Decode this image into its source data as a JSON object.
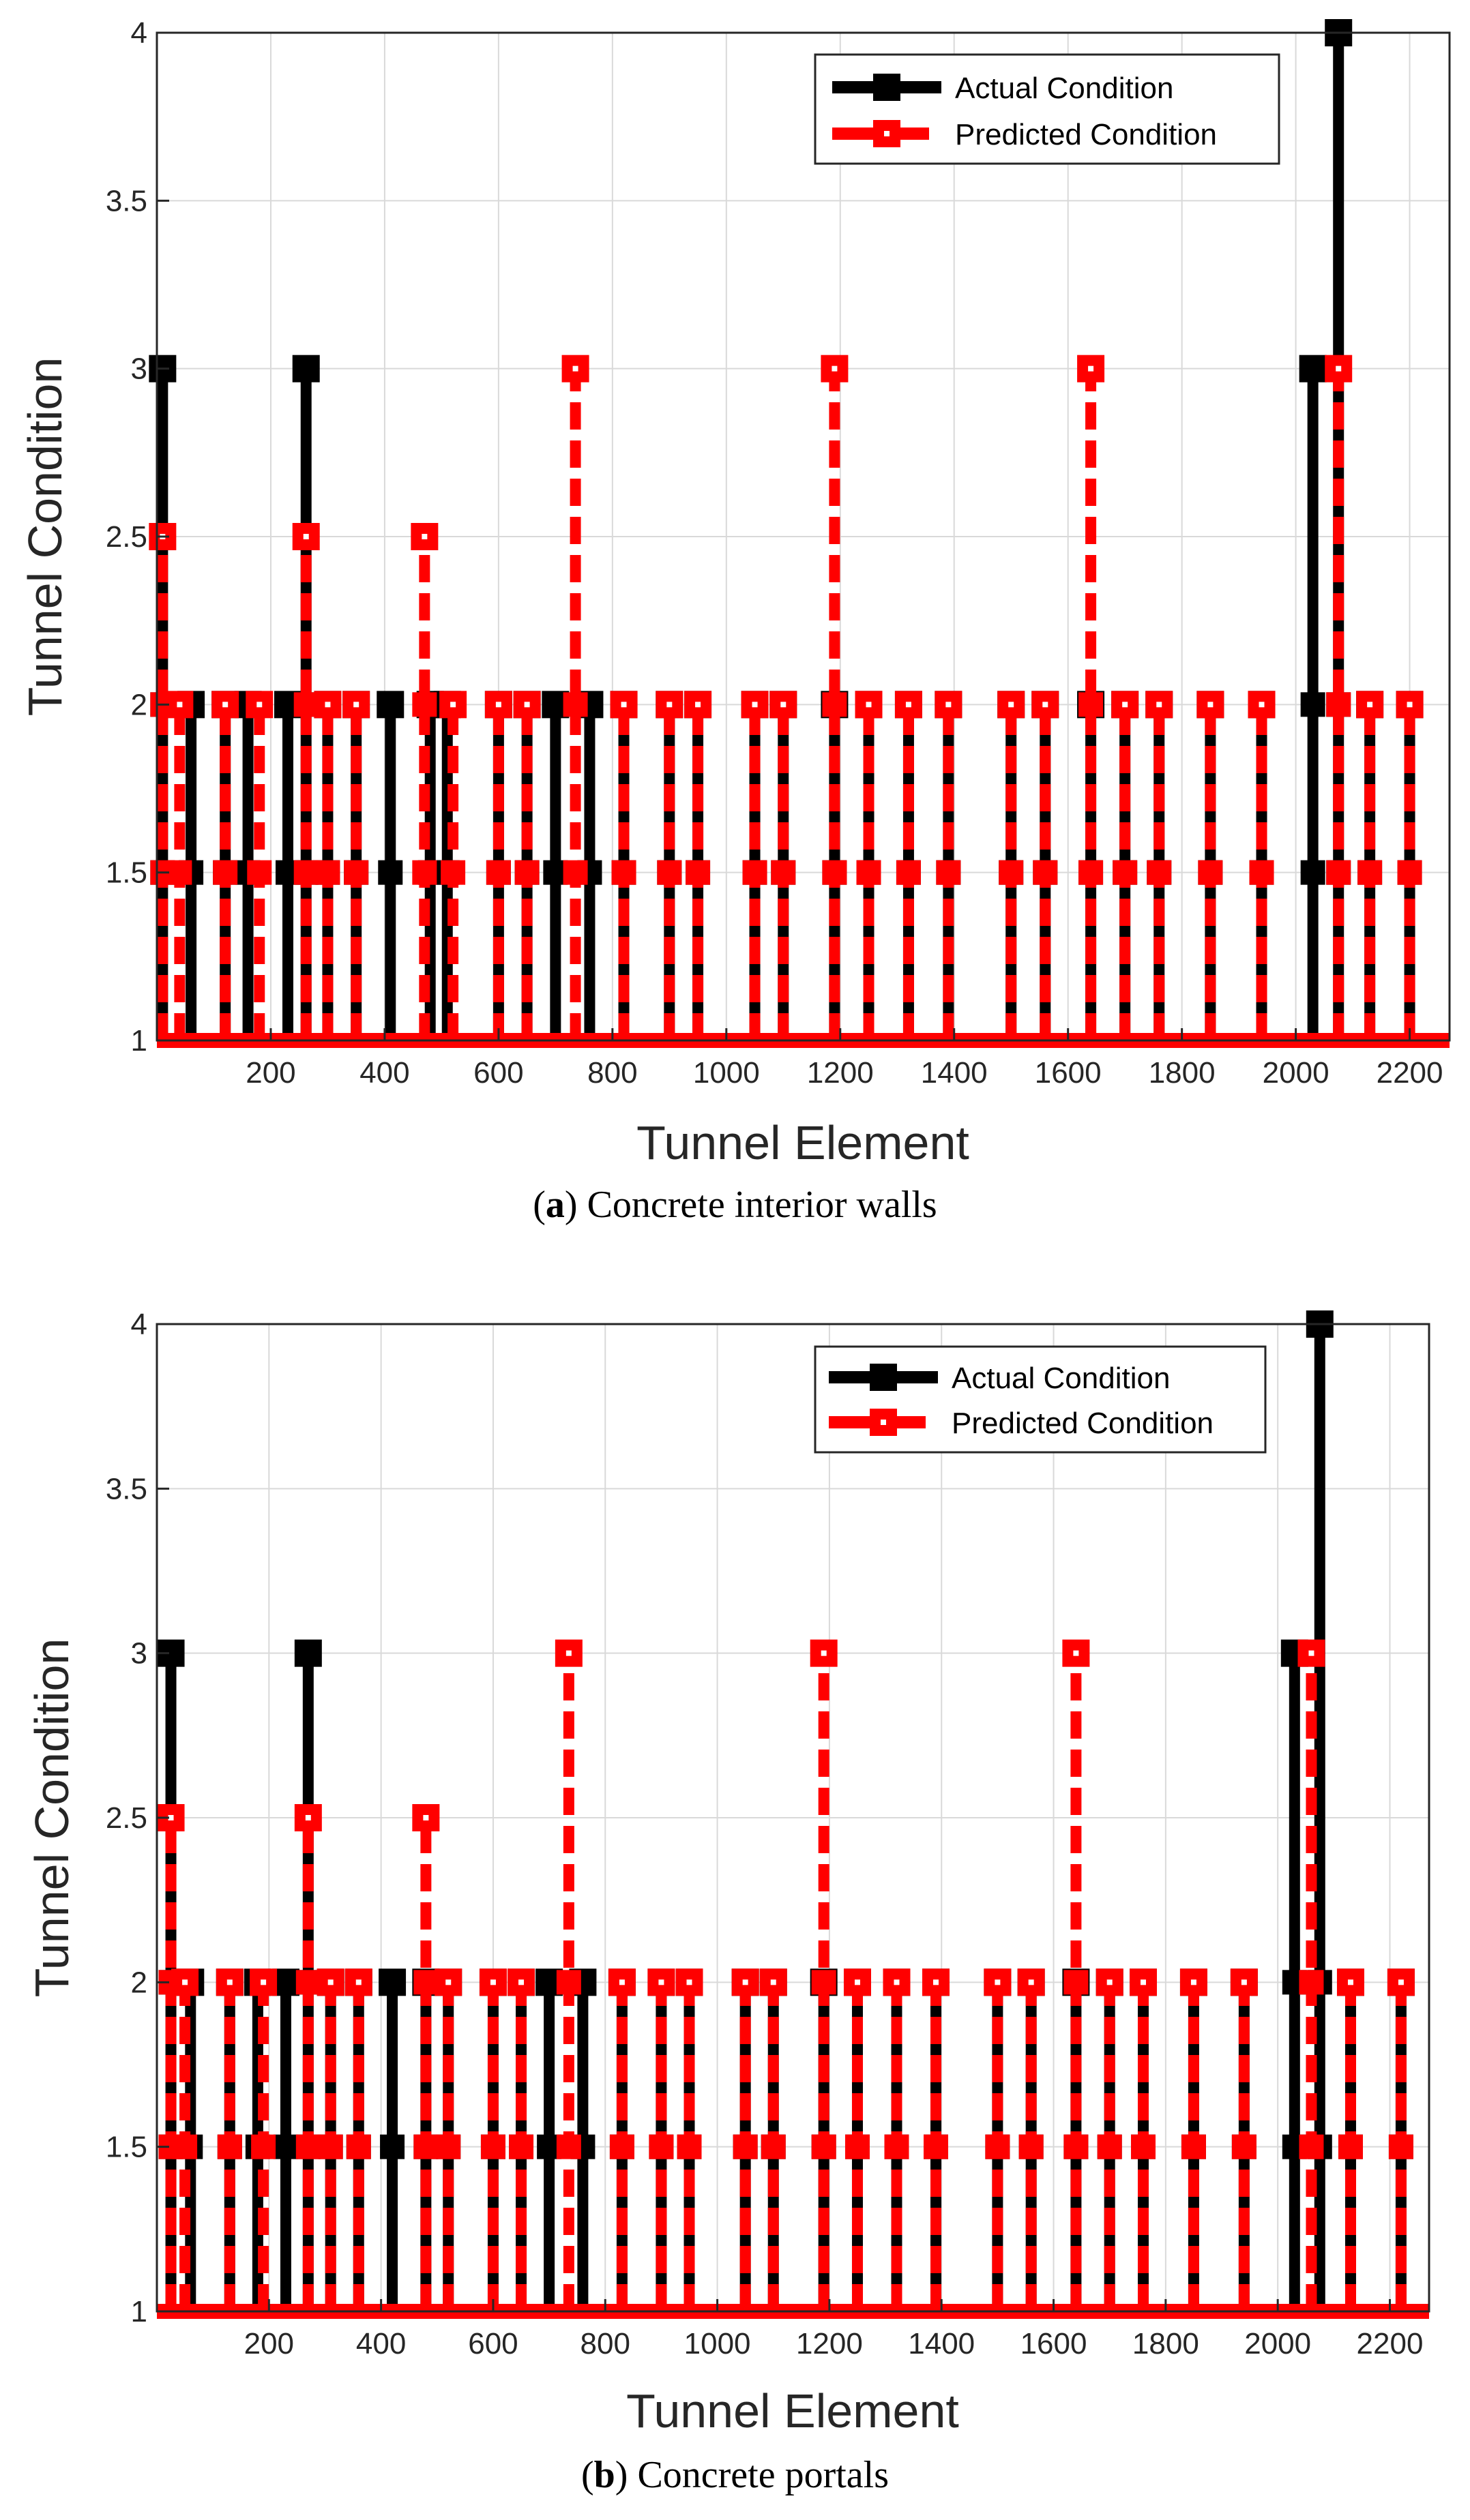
{
  "colors": {
    "actual": "#000000",
    "predicted": "#ff0000",
    "grid": "#d9d9d9",
    "axis": "#262626"
  },
  "chart_data": [
    {
      "type": "line",
      "panel": "a",
      "caption_letter": "a",
      "caption_text": "Concrete interior walls",
      "xlabel": "Tunnel Element",
      "ylabel": "Tunnel Condition",
      "xlim": [
        0,
        2270
      ],
      "ylim": [
        1,
        4
      ],
      "xticks": [
        200,
        400,
        600,
        800,
        1000,
        1200,
        1400,
        1600,
        1800,
        2000,
        2200
      ],
      "yticks": [
        1,
        1.5,
        2,
        2.5,
        3,
        3.5,
        4
      ],
      "grid": true,
      "legend_position": "top-right",
      "series": [
        {
          "name": "Actual Condition",
          "style": "solid",
          "peaks": [
            [
              10,
              3
            ],
            [
              60,
              2
            ],
            [
              120,
              2
            ],
            [
              160,
              2
            ],
            [
              230,
              2
            ],
            [
              262,
              3
            ],
            [
              300,
              2
            ],
            [
              350,
              2
            ],
            [
              410,
              2
            ],
            [
              480,
              2
            ],
            [
              510,
              2
            ],
            [
              600,
              2
            ],
            [
              650,
              2
            ],
            [
              700,
              2
            ],
            [
              760,
              2
            ],
            [
              820,
              2
            ],
            [
              900,
              2
            ],
            [
              950,
              2
            ],
            [
              1050,
              2
            ],
            [
              1100,
              2
            ],
            [
              1190,
              2
            ],
            [
              1250,
              2
            ],
            [
              1320,
              2
            ],
            [
              1390,
              2
            ],
            [
              1500,
              2
            ],
            [
              1560,
              2
            ],
            [
              1640,
              2
            ],
            [
              1700,
              2
            ],
            [
              1760,
              2
            ],
            [
              1850,
              2
            ],
            [
              1940,
              2
            ],
            [
              2030,
              3
            ],
            [
              2075,
              4
            ],
            [
              2130,
              2
            ],
            [
              2200,
              2
            ]
          ]
        },
        {
          "name": "Predicted Condition",
          "style": "dashed",
          "peaks": [
            [
              10,
              2.5
            ],
            [
              40,
              2
            ],
            [
              120,
              2
            ],
            [
              180,
              2
            ],
            [
              262,
              2.5
            ],
            [
              300,
              2
            ],
            [
              350,
              2
            ],
            [
              470,
              2.5
            ],
            [
              520,
              2
            ],
            [
              600,
              2
            ],
            [
              650,
              2
            ],
            [
              735,
              3
            ],
            [
              820,
              2
            ],
            [
              900,
              2
            ],
            [
              950,
              2
            ],
            [
              1050,
              2
            ],
            [
              1100,
              2
            ],
            [
              1190,
              3
            ],
            [
              1250,
              2
            ],
            [
              1320,
              2
            ],
            [
              1390,
              2
            ],
            [
              1500,
              2
            ],
            [
              1560,
              2
            ],
            [
              1640,
              3
            ],
            [
              1700,
              2
            ],
            [
              1760,
              2
            ],
            [
              1850,
              2
            ],
            [
              1940,
              2
            ],
            [
              2075,
              3
            ],
            [
              2130,
              2
            ],
            [
              2200,
              2
            ]
          ]
        }
      ]
    },
    {
      "type": "line",
      "panel": "b",
      "caption_letter": "b",
      "caption_text": "Concrete portals",
      "xlabel": "Tunnel Element",
      "ylabel": "Tunnel Condition",
      "xlim": [
        0,
        2270
      ],
      "ylim": [
        1,
        4
      ],
      "xticks": [
        200,
        400,
        600,
        800,
        1000,
        1200,
        1400,
        1600,
        1800,
        2000,
        2200
      ],
      "yticks": [
        1,
        1.5,
        2,
        2.5,
        3,
        3.5,
        4
      ],
      "grid": true,
      "legend_position": "top-right",
      "series": [
        {
          "name": "Actual Condition",
          "style": "solid",
          "peaks": [
            [
              25,
              3
            ],
            [
              60,
              2
            ],
            [
              130,
              2
            ],
            [
              180,
              2
            ],
            [
              230,
              2
            ],
            [
              270,
              3
            ],
            [
              310,
              2
            ],
            [
              360,
              2
            ],
            [
              420,
              2
            ],
            [
              480,
              2
            ],
            [
              520,
              2
            ],
            [
              600,
              2
            ],
            [
              650,
              2
            ],
            [
              700,
              2
            ],
            [
              760,
              2
            ],
            [
              830,
              2
            ],
            [
              900,
              2
            ],
            [
              950,
              2
            ],
            [
              1050,
              2
            ],
            [
              1100,
              2
            ],
            [
              1190,
              2
            ],
            [
              1250,
              2
            ],
            [
              1320,
              2
            ],
            [
              1390,
              2
            ],
            [
              1500,
              2
            ],
            [
              1560,
              2
            ],
            [
              1640,
              2
            ],
            [
              1700,
              2
            ],
            [
              1760,
              2
            ],
            [
              1850,
              2
            ],
            [
              1940,
              2
            ],
            [
              2030,
              3
            ],
            [
              2075,
              4
            ],
            [
              2130,
              2
            ],
            [
              2220,
              2
            ]
          ]
        },
        {
          "name": "Predicted Condition",
          "style": "dashed",
          "peaks": [
            [
              25,
              2.5
            ],
            [
              50,
              2
            ],
            [
              130,
              2
            ],
            [
              190,
              2
            ],
            [
              270,
              2.5
            ],
            [
              310,
              2
            ],
            [
              360,
              2
            ],
            [
              480,
              2.5
            ],
            [
              520,
              2
            ],
            [
              600,
              2
            ],
            [
              650,
              2
            ],
            [
              735,
              3
            ],
            [
              830,
              2
            ],
            [
              900,
              2
            ],
            [
              950,
              2
            ],
            [
              1050,
              2
            ],
            [
              1100,
              2
            ],
            [
              1190,
              3
            ],
            [
              1250,
              2
            ],
            [
              1320,
              2
            ],
            [
              1390,
              2
            ],
            [
              1500,
              2
            ],
            [
              1560,
              2
            ],
            [
              1640,
              3
            ],
            [
              1700,
              2
            ],
            [
              1760,
              2
            ],
            [
              1850,
              2
            ],
            [
              1940,
              2
            ],
            [
              2060,
              3
            ],
            [
              2130,
              2
            ],
            [
              2220,
              2
            ]
          ]
        }
      ]
    }
  ]
}
